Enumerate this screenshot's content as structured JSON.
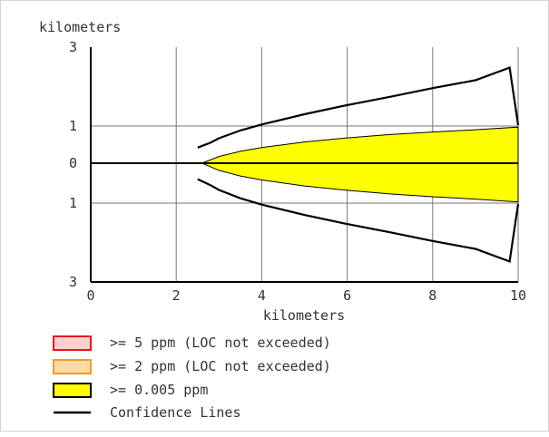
{
  "chart_data": {
    "type": "area",
    "title": "",
    "y_unit_label": "kilometers",
    "xlabel": "kilometers",
    "ylabel": "kilometers",
    "xlim": [
      0,
      10
    ],
    "ylim": [
      -3,
      3
    ],
    "x_ticks": [
      0,
      2,
      4,
      6,
      8,
      10
    ],
    "x_tick_labels": [
      "0",
      "2",
      "4",
      "6",
      "8",
      "10"
    ],
    "y_ticks": [
      3,
      1,
      0,
      -1,
      -3
    ],
    "y_tick_labels": [
      "3",
      "1",
      "0",
      "1",
      "3"
    ],
    "grid": true,
    "centerline_y": 0,
    "threat_zone": {
      "name": ">= 0.005 ppm",
      "color": "#ffff00",
      "x": [
        2.6,
        3.0,
        3.5,
        4.0,
        5.0,
        6.0,
        7.0,
        8.0,
        9.0,
        10.0
      ],
      "upper": [
        0.0,
        0.18,
        0.32,
        0.42,
        0.57,
        0.68,
        0.77,
        0.84,
        0.9,
        0.97
      ],
      "lower": [
        0.0,
        -0.18,
        -0.32,
        -0.42,
        -0.57,
        -0.68,
        -0.77,
        -0.84,
        -0.9,
        -0.97
      ]
    },
    "confidence_lines": {
      "name": "Confidence Lines",
      "color": "#000000",
      "upper": {
        "x": [
          2.5,
          2.8,
          3.0,
          3.5,
          4.0,
          5.0,
          6.0,
          7.0,
          8.0,
          9.0,
          9.8,
          10.0
        ],
        "y": [
          0.42,
          0.55,
          0.67,
          0.88,
          1.04,
          1.3,
          1.53,
          1.74,
          1.96,
          2.16,
          2.48,
          1.02
        ]
      },
      "lower": {
        "x": [
          2.5,
          2.8,
          3.0,
          3.5,
          4.0,
          5.0,
          6.0,
          7.0,
          8.0,
          9.0,
          9.8,
          10.0
        ],
        "y": [
          -0.4,
          -0.55,
          -0.67,
          -0.88,
          -1.04,
          -1.3,
          -1.53,
          -1.74,
          -1.96,
          -2.16,
          -2.48,
          -1.02
        ]
      }
    }
  },
  "legend": [
    {
      "label": ">= 5 ppm (LOC not exceeded)",
      "fill": "#ffd0d0",
      "stroke": "#e8141e",
      "type": "box"
    },
    {
      "label": ">= 2 ppm (LOC not exceeded)",
      "fill": "#ffd9a6",
      "stroke": "#f39a1e",
      "type": "box"
    },
    {
      "label": ">= 0.005 ppm",
      "fill": "#ffff00",
      "stroke": "#000000",
      "type": "box"
    },
    {
      "label": "Confidence Lines",
      "fill": "",
      "stroke": "#000000",
      "type": "line"
    }
  ]
}
